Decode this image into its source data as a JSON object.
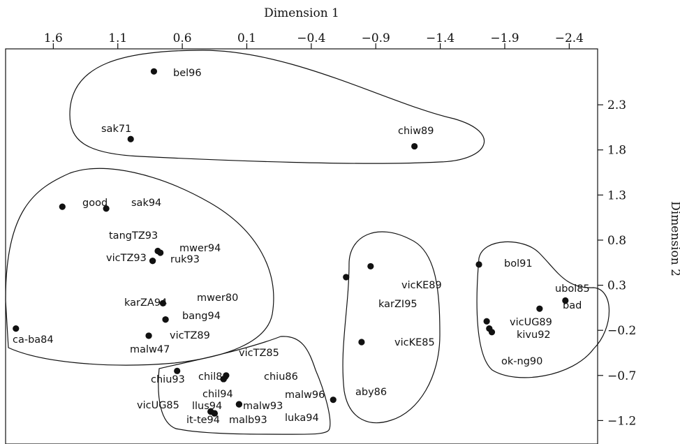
{
  "chart_data": {
    "type": "scatter",
    "xlabel": "Dimension 1",
    "ylabel": "Dimension 2",
    "xlim": [
      1.97,
      -2.62
    ],
    "ylim": [
      -1.46,
      2.92
    ],
    "x_ticks": [
      1.6,
      1.1,
      0.6,
      0.1,
      -0.4,
      -0.9,
      -1.4,
      -1.9,
      -2.4
    ],
    "x_tick_labels": [
      "1.6",
      "1.1",
      "0.6",
      "0.1",
      "−0.4",
      "−0.9",
      "−1.4",
      "−1.9",
      "−2.4"
    ],
    "y_ticks": [
      2.3,
      1.8,
      1.3,
      0.8,
      0.3,
      -0.2,
      -0.7,
      -1.2
    ],
    "y_tick_labels": [
      "2.3",
      "1.8",
      "1.3",
      "0.8",
      "0.3",
      "−0.2",
      "−0.7",
      "−1.2"
    ],
    "grid": false,
    "points": [
      {
        "label": "bel96",
        "x": 0.82,
        "y": 2.67
      },
      {
        "label": "sak71",
        "x": 1.0,
        "y": 1.92
      },
      {
        "label": "chiw89",
        "x": -1.2,
        "y": 1.84
      },
      {
        "label": "good",
        "x": 1.53,
        "y": 1.17
      },
      {
        "label": "sak94",
        "x": 1.19,
        "y": 1.15
      },
      {
        "label": "tangTZ93",
        "x": 0.79,
        "y": 0.68
      },
      {
        "label": "mwer94",
        "x": 0.77,
        "y": 0.66
      },
      {
        "label": "vicTZ93",
        "x": 0.83,
        "y": 0.57
      },
      {
        "label": "ruk93",
        "x": 0.83,
        "y": 0.57
      },
      {
        "label": "mwer80",
        "x": 0.75,
        "y": 0.1
      },
      {
        "label": "karZA94",
        "x": 0.73,
        "y": -0.08
      },
      {
        "label": "bang94",
        "x": 0.73,
        "y": -0.08
      },
      {
        "label": "ca-ba84",
        "x": 1.89,
        "y": -0.18
      },
      {
        "label": "vicTZ89",
        "x": 0.86,
        "y": -0.26
      },
      {
        "label": "malw47",
        "x": 0.86,
        "y": -0.26
      },
      {
        "label": "vicKE89",
        "x": -0.86,
        "y": 0.51
      },
      {
        "label": "karZI95",
        "x": -0.67,
        "y": 0.39
      },
      {
        "label": "vicKE85",
        "x": -0.79,
        "y": -0.33
      },
      {
        "label": "aby86",
        "x": -0.57,
        "y": -0.97
      },
      {
        "label": "bol91",
        "x": -1.7,
        "y": 0.53
      },
      {
        "label": "ubol85",
        "x": -2.37,
        "y": 0.13
      },
      {
        "label": "bad",
        "x": -2.17,
        "y": 0.04
      },
      {
        "label": "vicUG89",
        "x": -1.76,
        "y": -0.1
      },
      {
        "label": "kivu92",
        "x": -1.78,
        "y": -0.18
      },
      {
        "label": "ok-ng90",
        "x": -1.8,
        "y": -0.22
      },
      {
        "label": "vicTZ85",
        "x": 0.26,
        "y": -0.7
      },
      {
        "label": "chiu93",
        "x": 0.64,
        "y": -0.65
      },
      {
        "label": "chil86",
        "x": 0.28,
        "y": -0.74
      },
      {
        "label": "chiu86",
        "x": 0.28,
        "y": -0.74
      },
      {
        "label": "chil94",
        "x": 0.28,
        "y": -0.74
      },
      {
        "label": "malw96",
        "x": 0.16,
        "y": -1.02
      },
      {
        "label": "malw93",
        "x": 0.16,
        "y": -1.02
      },
      {
        "label": "vicUG85",
        "x": 0.38,
        "y": -1.1
      },
      {
        "label": "llus94",
        "x": 0.38,
        "y": -1.1
      },
      {
        "label": "it-te94",
        "x": 0.35,
        "y": -1.12
      },
      {
        "label": "malb93",
        "x": 0.35,
        "y": -1.12
      },
      {
        "label": "luka94",
        "x": 0.35,
        "y": -1.12
      }
    ],
    "groups": [
      [
        "bel96",
        "sak71",
        "chiw89"
      ],
      [
        "good",
        "sak94",
        "tangTZ93",
        "mwer94",
        "vicTZ93",
        "ruk93",
        "mwer80",
        "karZA94",
        "bang94",
        "ca-ba84",
        "vicTZ89",
        "malw47"
      ],
      [
        "vicTZ85",
        "chiu93",
        "chil86",
        "chiu86",
        "chil94",
        "malw96",
        "malw93",
        "vicUG85",
        "llus94",
        "it-te94",
        "malb93",
        "luka94"
      ],
      [
        "vicKE89",
        "karZI95",
        "vicKE85",
        "aby86"
      ],
      [
        "bol91",
        "ubol85",
        "bad",
        "vicUG89",
        "kivu92",
        "ok-ng90"
      ]
    ]
  }
}
